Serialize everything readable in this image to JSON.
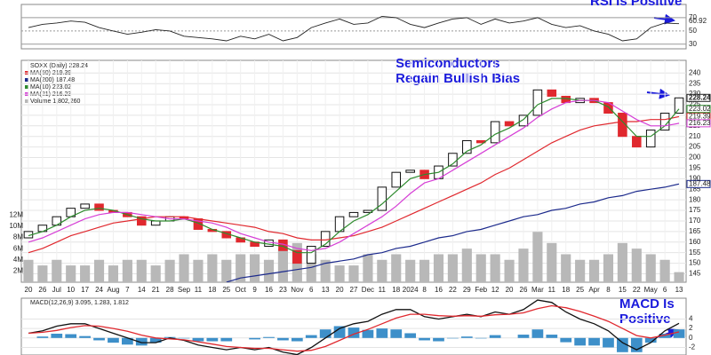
{
  "chart_data": {
    "type": "candlestick",
    "legend_title": "SOXX (Daily) 228.24",
    "categories": [
      "20",
      "26",
      "Jul",
      "10",
      "17",
      "24",
      "Aug",
      "7",
      "14",
      "21",
      "28",
      "Sep",
      "11",
      "18",
      "25",
      "Oct",
      "9",
      "16",
      "23",
      "Nov",
      "6",
      "13",
      "20",
      "27",
      "Dec",
      "11",
      "18",
      "2024",
      "8",
      "16",
      "22",
      "29",
      "Feb",
      "12",
      "20",
      "26",
      "Mar",
      "11",
      "18",
      "25",
      "Apr",
      "8",
      "15",
      "22",
      "May",
      "6",
      "13"
    ],
    "open": [
      162,
      165,
      168,
      172,
      176,
      178,
      175,
      174,
      172,
      168,
      170,
      172,
      171,
      166,
      165,
      162,
      160,
      158,
      161,
      156,
      150,
      158,
      165,
      172,
      174,
      175,
      186,
      193,
      194,
      190,
      196,
      202,
      208,
      207,
      217,
      215,
      220,
      232,
      229,
      226,
      228,
      226,
      221,
      210,
      205,
      213,
      221
    ],
    "close": [
      165,
      168,
      172,
      176,
      178,
      175,
      174,
      172,
      168,
      170,
      172,
      171,
      166,
      165,
      162,
      160,
      158,
      161,
      156,
      150,
      158,
      165,
      172,
      174,
      175,
      186,
      193,
      194,
      190,
      196,
      202,
      208,
      207,
      217,
      215,
      220,
      232,
      229,
      226,
      228,
      226,
      221,
      210,
      205,
      213,
      221,
      228.24
    ],
    "up_color": "#111111",
    "down_color": "#e0282e",
    "ylim": [
      141,
      246
    ],
    "yticks": [
      145,
      150,
      155,
      160,
      165,
      170,
      175,
      180,
      185,
      190,
      195,
      200,
      205,
      210,
      215,
      220,
      225,
      230,
      235,
      240
    ],
    "grid": true,
    "series": [
      {
        "name": "MA(50) 219.39",
        "color": "#e0282e",
        "values": [
          155,
          157,
          160,
          163,
          165,
          167,
          169,
          170,
          171,
          172,
          172,
          172,
          171,
          170,
          169,
          168,
          167,
          165,
          164,
          162,
          161,
          161,
          162,
          163,
          165,
          167,
          170,
          173,
          176,
          179,
          182,
          185,
          188,
          192,
          195,
          199,
          203,
          207,
          210,
          213,
          215,
          216,
          217,
          217,
          218,
          218,
          219.39
        ]
      },
      {
        "name": "MA(200) 187.48",
        "color": "#1c2a8c",
        "values": [
          null,
          null,
          null,
          null,
          null,
          null,
          null,
          null,
          null,
          null,
          null,
          null,
          null,
          null,
          141,
          143,
          144,
          145,
          146,
          147,
          148,
          150,
          151,
          152,
          154,
          155,
          157,
          158,
          160,
          162,
          163,
          165,
          166,
          168,
          170,
          172,
          173,
          175,
          176,
          178,
          179,
          181,
          182,
          184,
          185,
          186,
          187.48
        ]
      },
      {
        "name": "MA(10) 223.02",
        "color": "#2e8b2e",
        "values": [
          163,
          165,
          168,
          172,
          175,
          176,
          175,
          173,
          171,
          170,
          170,
          171,
          169,
          166,
          164,
          162,
          160,
          159,
          158,
          155,
          155,
          159,
          165,
          170,
          173,
          178,
          184,
          190,
          192,
          193,
          197,
          203,
          206,
          211,
          214,
          218,
          225,
          228,
          228,
          227,
          227,
          224,
          217,
          210,
          210,
          215,
          223.02
        ]
      },
      {
        "name": "MA(21) 216.23",
        "color": "#d63fd6",
        "values": [
          160,
          162,
          165,
          168,
          171,
          173,
          174,
          174,
          173,
          172,
          171,
          171,
          170,
          169,
          167,
          164,
          162,
          160,
          159,
          157,
          156,
          157,
          160,
          164,
          168,
          172,
          177,
          183,
          188,
          190,
          194,
          198,
          202,
          206,
          210,
          214,
          219,
          223,
          226,
          227,
          227,
          226,
          222,
          218,
          215,
          215,
          216.23
        ]
      }
    ],
    "volume": {
      "name": "Volume 1,802,260",
      "color": "#b8b8b8",
      "ylim": [
        0,
        13
      ],
      "yticks": [
        {
          "value": 2,
          "label": "2M"
        },
        {
          "value": 4,
          "label": "4M"
        },
        {
          "value": 6,
          "label": "6M"
        },
        {
          "value": 8,
          "label": "8M"
        },
        {
          "value": 10,
          "label": "10M"
        },
        {
          "value": 12,
          "label": "12M"
        }
      ],
      "values": [
        4,
        3,
        4,
        3,
        3,
        4,
        3,
        4,
        4,
        3,
        4,
        5,
        4,
        5,
        4,
        5,
        5,
        4,
        6,
        7,
        5,
        4,
        3,
        3,
        5,
        4,
        5,
        4,
        4,
        5,
        5,
        6,
        5,
        5,
        4,
        6,
        9,
        7,
        5,
        4,
        4,
        5,
        7,
        6,
        5,
        4,
        1.80226
      ]
    },
    "rsi": {
      "color": "#222222",
      "ylim": [
        23,
        90
      ],
      "yticks": [
        30,
        50,
        70
      ],
      "values": [
        55,
        60,
        62,
        65,
        63,
        55,
        50,
        45,
        48,
        52,
        50,
        42,
        40,
        38,
        35,
        42,
        38,
        45,
        35,
        40,
        55,
        62,
        68,
        60,
        62,
        72,
        70,
        60,
        55,
        62,
        68,
        70,
        60,
        68,
        62,
        65,
        70,
        60,
        55,
        58,
        50,
        45,
        35,
        38,
        55,
        62,
        60.92
      ]
    },
    "macd": {
      "label": "MACD(12,26,9) 3.095, 1.283, 1.812",
      "ylim": [
        -3.6,
        8.4
      ],
      "yticks": [
        -2,
        0,
        2,
        4
      ],
      "series": [
        {
          "color": "#111111",
          "values": [
            1,
            1.5,
            2.5,
            3,
            3,
            2,
            1,
            0,
            -1,
            -1,
            0,
            -0.5,
            -1.5,
            -2,
            -2.5,
            -2,
            -2.5,
            -2,
            -3,
            -3.5,
            -2,
            0,
            2,
            3,
            3.5,
            5,
            6,
            6,
            4.5,
            4,
            4.5,
            5,
            4.5,
            5.5,
            5,
            6,
            8,
            7.5,
            5.5,
            4,
            3,
            1.5,
            -1,
            -2.5,
            -1,
            1.5,
            3.095
          ]
        },
        {
          "color": "#e0282e",
          "values": [
            1,
            1.2,
            1.6,
            2.2,
            2.6,
            2.5,
            2,
            1.4,
            0.6,
            0,
            -0.2,
            -0.4,
            -0.8,
            -1.3,
            -1.8,
            -2,
            -2.2,
            -2.2,
            -2.5,
            -2.8,
            -2.6,
            -1.8,
            -0.5,
            0.8,
            1.8,
            3,
            4.2,
            5,
            5,
            4.7,
            4.6,
            4.7,
            4.6,
            4.9,
            5,
            5.3,
            6.2,
            6.8,
            6.4,
            5.6,
            4.6,
            3.5,
            2,
            0.5,
            0,
            0.6,
            1.283
          ]
        }
      ],
      "histogram_color": "#3d8fc9",
      "histogram": [
        0,
        0.3,
        0.9,
        0.8,
        0.4,
        -0.5,
        -1,
        -1.4,
        -1.6,
        -1,
        0.2,
        -0.1,
        -0.7,
        -0.7,
        -0.7,
        0,
        -0.3,
        0.2,
        -0.5,
        -0.7,
        0.6,
        1.8,
        2.5,
        2.2,
        1.7,
        2,
        1.8,
        1,
        -0.5,
        -0.7,
        -0.1,
        0.3,
        -0.1,
        0.6,
        0,
        0.7,
        1.8,
        0.7,
        -0.9,
        -1.6,
        -1.6,
        -2,
        -3,
        -3,
        -1,
        0.9,
        1.812
      ]
    },
    "annotations": [
      "Semiconductors",
      "Regain Bullish Bias",
      "RSI Is Positive",
      "MACD Is",
      "Positive"
    ]
  }
}
